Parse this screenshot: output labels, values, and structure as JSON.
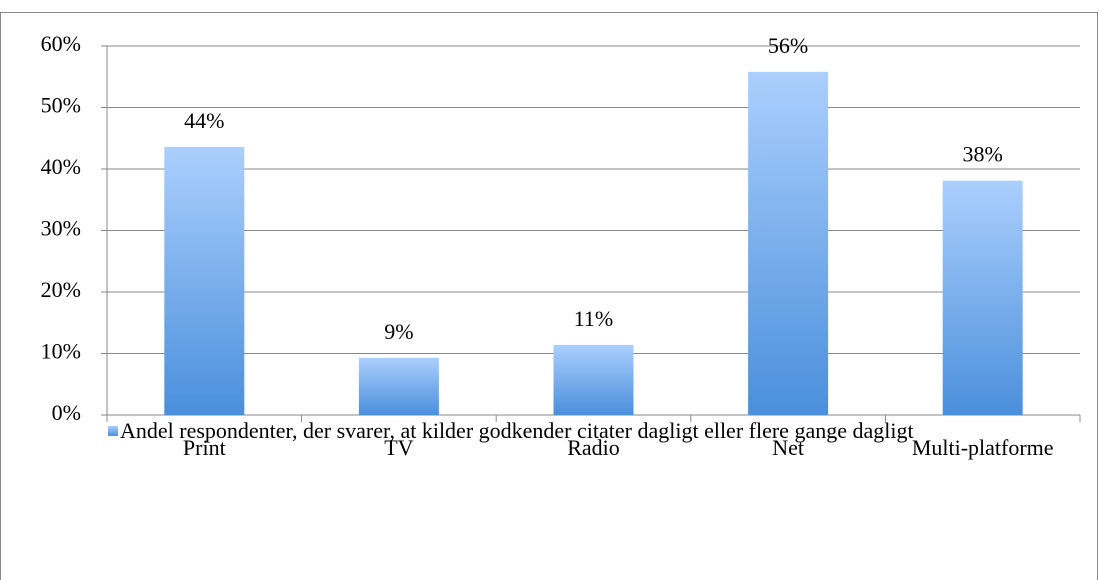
{
  "chart_data": {
    "type": "bar",
    "categories": [
      "Print",
      "TV",
      "Radio",
      "Net",
      "Multi-platforme"
    ],
    "series": [
      {
        "name": "Andel respondenter, der svarer, at kilder godkender citater dagligt eller flere gange dagligt",
        "color": "#4a8fdc",
        "values": [
          43.6,
          9.3,
          11.4,
          55.8,
          38.1
        ],
        "value_labels": [
          "44%",
          "9%",
          "11%",
          "56%",
          "38%"
        ]
      }
    ],
    "ylim": [
      0,
      60
    ],
    "yticks": [
      {
        "value": 0,
        "label": "0%"
      },
      {
        "value": 10,
        "label": "10%"
      },
      {
        "value": 20,
        "label": "20%"
      },
      {
        "value": 30,
        "label": "30%"
      },
      {
        "value": 40,
        "label": "40%"
      },
      {
        "value": 50,
        "label": "50%"
      },
      {
        "value": 60,
        "label": "60%"
      }
    ],
    "grid": true,
    "legend": "bottom"
  }
}
